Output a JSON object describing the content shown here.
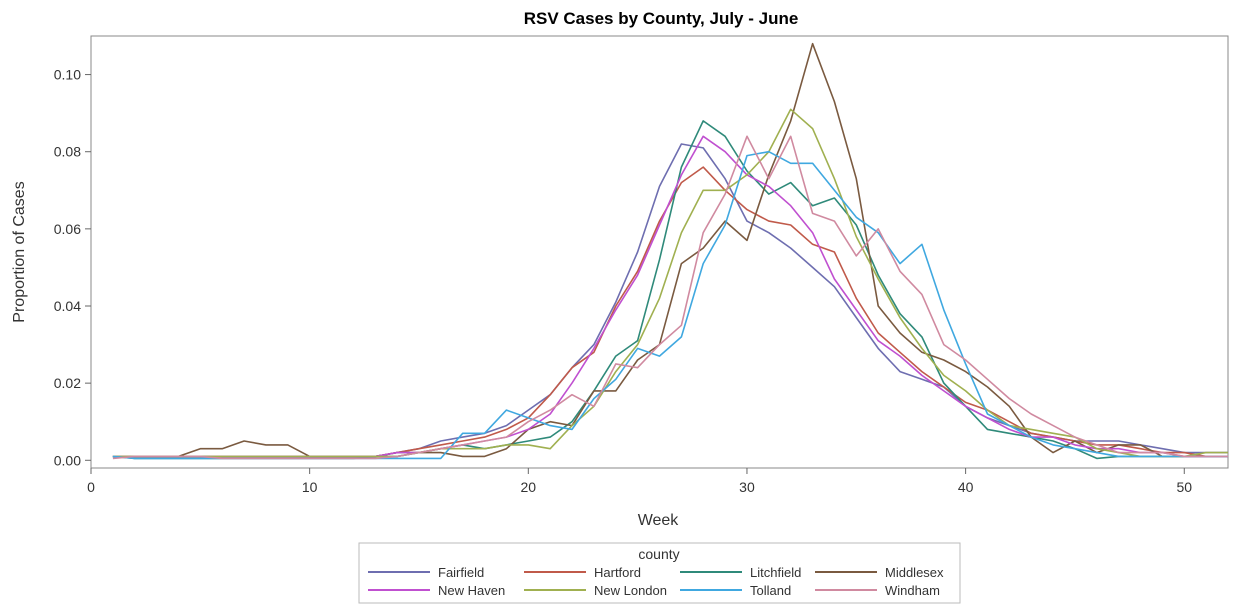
{
  "chart_data": {
    "type": "line",
    "title": "RSV Cases by County, July - June",
    "xlabel": "Week",
    "ylabel": "Proportion of Cases",
    "xlim": [
      0,
      52
    ],
    "ylim": [
      -0.002,
      0.11
    ],
    "xticks": [
      0,
      10,
      20,
      30,
      40,
      50
    ],
    "yticks": [
      0.0,
      0.02,
      0.04,
      0.06,
      0.08,
      0.1
    ],
    "ytick_labels": [
      "0.00",
      "0.02",
      "0.04",
      "0.06",
      "0.08",
      "0.10"
    ],
    "grid": false,
    "legend": {
      "title": "county",
      "placement": "bottom"
    },
    "x": [
      1,
      2,
      3,
      4,
      5,
      6,
      7,
      8,
      9,
      10,
      11,
      12,
      13,
      14,
      15,
      16,
      17,
      18,
      19,
      20,
      21,
      22,
      23,
      24,
      25,
      26,
      27,
      28,
      29,
      30,
      31,
      32,
      33,
      34,
      35,
      36,
      37,
      38,
      39,
      40,
      41,
      42,
      43,
      44,
      45,
      46,
      47,
      48,
      49,
      50,
      51,
      52
    ],
    "series": [
      {
        "name": "Fairfield",
        "color": "#6e6eb0",
        "values": [
          0.001,
          0.001,
          0.001,
          0.001,
          0.001,
          0.001,
          0.001,
          0.001,
          0.001,
          0.001,
          0.001,
          0.001,
          0.001,
          0.002,
          0.003,
          0.005,
          0.006,
          0.007,
          0.009,
          0.013,
          0.017,
          0.024,
          0.03,
          0.041,
          0.054,
          0.071,
          0.082,
          0.081,
          0.073,
          0.062,
          0.059,
          0.055,
          0.05,
          0.045,
          0.037,
          0.029,
          0.023,
          0.021,
          0.019,
          0.014,
          0.011,
          0.009,
          0.007,
          0.006,
          0.005,
          0.005,
          0.005,
          0.004,
          0.003,
          0.002,
          0.002,
          0.002
        ]
      },
      {
        "name": "Hartford",
        "color": "#c05a4a",
        "values": [
          0.001,
          0.001,
          0.001,
          0.001,
          0.001,
          0.001,
          0.001,
          0.001,
          0.001,
          0.001,
          0.001,
          0.001,
          0.001,
          0.002,
          0.003,
          0.004,
          0.005,
          0.006,
          0.008,
          0.011,
          0.017,
          0.024,
          0.028,
          0.04,
          0.049,
          0.062,
          0.072,
          0.076,
          0.07,
          0.065,
          0.062,
          0.061,
          0.056,
          0.054,
          0.042,
          0.033,
          0.028,
          0.023,
          0.019,
          0.015,
          0.013,
          0.01,
          0.007,
          0.006,
          0.005,
          0.004,
          0.004,
          0.003,
          0.002,
          0.002,
          0.001,
          0.001
        ]
      },
      {
        "name": "Litchfield",
        "color": "#2f8a7a",
        "values": [
          0.001,
          0.0005,
          0.0005,
          0.0005,
          0.0005,
          0.0005,
          0.0005,
          0.0005,
          0.0005,
          0.0005,
          0.0005,
          0.0005,
          0.001,
          0.001,
          0.002,
          0.003,
          0.004,
          0.003,
          0.004,
          0.005,
          0.006,
          0.01,
          0.018,
          0.027,
          0.031,
          0.052,
          0.076,
          0.088,
          0.084,
          0.075,
          0.069,
          0.072,
          0.066,
          0.068,
          0.061,
          0.048,
          0.038,
          0.032,
          0.02,
          0.014,
          0.008,
          0.007,
          0.006,
          0.005,
          0.003,
          0.0005,
          0.001,
          0.001,
          0.001,
          0.001,
          0.001,
          0.001
        ]
      },
      {
        "name": "Middlesex",
        "color": "#7a5a40",
        "values": [
          0.001,
          0.001,
          0.001,
          0.001,
          0.003,
          0.003,
          0.005,
          0.004,
          0.004,
          0.001,
          0.001,
          0.001,
          0.001,
          0.002,
          0.002,
          0.002,
          0.001,
          0.001,
          0.003,
          0.008,
          0.01,
          0.009,
          0.018,
          0.018,
          0.026,
          0.03,
          0.051,
          0.055,
          0.062,
          0.057,
          0.074,
          0.088,
          0.108,
          0.093,
          0.073,
          0.04,
          0.033,
          0.028,
          0.026,
          0.023,
          0.019,
          0.014,
          0.006,
          0.002,
          0.005,
          0.002,
          0.004,
          0.004,
          0.001,
          0.001,
          0.001,
          0.001
        ]
      },
      {
        "name": "New Haven",
        "color": "#c050d0",
        "values": [
          0.001,
          0.001,
          0.001,
          0.001,
          0.001,
          0.001,
          0.001,
          0.001,
          0.001,
          0.001,
          0.001,
          0.001,
          0.001,
          0.002,
          0.002,
          0.003,
          0.004,
          0.005,
          0.006,
          0.008,
          0.012,
          0.02,
          0.029,
          0.039,
          0.048,
          0.061,
          0.074,
          0.084,
          0.08,
          0.074,
          0.071,
          0.066,
          0.059,
          0.047,
          0.039,
          0.031,
          0.027,
          0.022,
          0.018,
          0.014,
          0.011,
          0.008,
          0.006,
          0.006,
          0.004,
          0.003,
          0.003,
          0.002,
          0.002,
          0.001,
          0.001,
          0.001
        ]
      },
      {
        "name": "New London",
        "color": "#a0b050",
        "values": [
          0.001,
          0.001,
          0.001,
          0.001,
          0.001,
          0.001,
          0.001,
          0.001,
          0.001,
          0.001,
          0.001,
          0.001,
          0.001,
          0.001,
          0.002,
          0.003,
          0.003,
          0.003,
          0.004,
          0.004,
          0.003,
          0.009,
          0.014,
          0.023,
          0.03,
          0.042,
          0.059,
          0.07,
          0.07,
          0.074,
          0.08,
          0.091,
          0.086,
          0.073,
          0.058,
          0.047,
          0.037,
          0.029,
          0.022,
          0.018,
          0.013,
          0.009,
          0.008,
          0.007,
          0.006,
          0.003,
          0.002,
          0.001,
          0.001,
          0.001,
          0.002,
          0.002
        ]
      },
      {
        "name": "Tolland",
        "color": "#40a8e0",
        "values": [
          0.001,
          0.0005,
          0.0005,
          0.0005,
          0.0005,
          0.0005,
          0.0005,
          0.0005,
          0.0005,
          0.0005,
          0.0005,
          0.0005,
          0.0005,
          0.0005,
          0.0005,
          0.0005,
          0.007,
          0.007,
          0.013,
          0.011,
          0.009,
          0.008,
          0.016,
          0.021,
          0.029,
          0.027,
          0.032,
          0.051,
          0.061,
          0.079,
          0.08,
          0.077,
          0.077,
          0.07,
          0.063,
          0.059,
          0.051,
          0.056,
          0.039,
          0.025,
          0.012,
          0.009,
          0.006,
          0.004,
          0.003,
          0.002,
          0.001,
          0.001,
          0.001,
          0.001,
          0.001,
          0.001
        ]
      },
      {
        "name": "Windham",
        "color": "#d08aa0",
        "values": [
          0.0005,
          0.001,
          0.001,
          0.001,
          0.001,
          0.0005,
          0.0005,
          0.0005,
          0.0005,
          0.0005,
          0.0005,
          0.0005,
          0.0005,
          0.001,
          0.002,
          0.003,
          0.004,
          0.005,
          0.006,
          0.01,
          0.013,
          0.017,
          0.014,
          0.025,
          0.024,
          0.03,
          0.035,
          0.059,
          0.069,
          0.084,
          0.073,
          0.084,
          0.064,
          0.062,
          0.053,
          0.06,
          0.049,
          0.043,
          0.03,
          0.026,
          0.021,
          0.016,
          0.012,
          0.009,
          0.006,
          0.004,
          0.002,
          0.002,
          0.002,
          0.001,
          0.001,
          0.001
        ]
      }
    ]
  }
}
